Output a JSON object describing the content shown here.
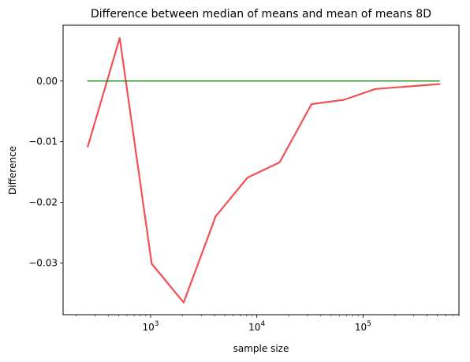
{
  "chart_data": {
    "type": "line",
    "title": "Difference between median of means and mean of means 8D",
    "xlabel": "sample size",
    "ylabel": "Difference",
    "x_scale": "log",
    "xlim": [
      150,
      800000
    ],
    "ylim": [
      -0.0385,
      0.0092
    ],
    "x_ticks": [
      {
        "value": 1000,
        "base": "10",
        "exp": "3"
      },
      {
        "value": 10000,
        "base": "10",
        "exp": "4"
      },
      {
        "value": 100000,
        "base": "10",
        "exp": "5"
      }
    ],
    "y_ticks": [
      {
        "value": 0.0,
        "label": "0.00"
      },
      {
        "value": -0.01,
        "label": "−0.01"
      },
      {
        "value": -0.02,
        "label": "−0.02"
      },
      {
        "value": -0.03,
        "label": "−0.03"
      }
    ],
    "grid": false,
    "series": [
      {
        "color": "#f0474b",
        "points": [
          [
            256,
            -0.0108
          ],
          [
            512,
            0.0071
          ],
          [
            1024,
            -0.0301
          ],
          [
            2048,
            -0.0365
          ],
          [
            4096,
            -0.0223
          ],
          [
            8192,
            -0.0159
          ],
          [
            16384,
            -0.0134
          ],
          [
            32768,
            -0.0038
          ],
          [
            65536,
            -0.0031
          ],
          [
            131072,
            -0.0013
          ],
          [
            524288,
            -0.0005
          ]
        ]
      },
      {
        "color": "#008000",
        "points": [
          [
            256,
            0.0
          ],
          [
            524288,
            0.0
          ]
        ]
      }
    ]
  }
}
